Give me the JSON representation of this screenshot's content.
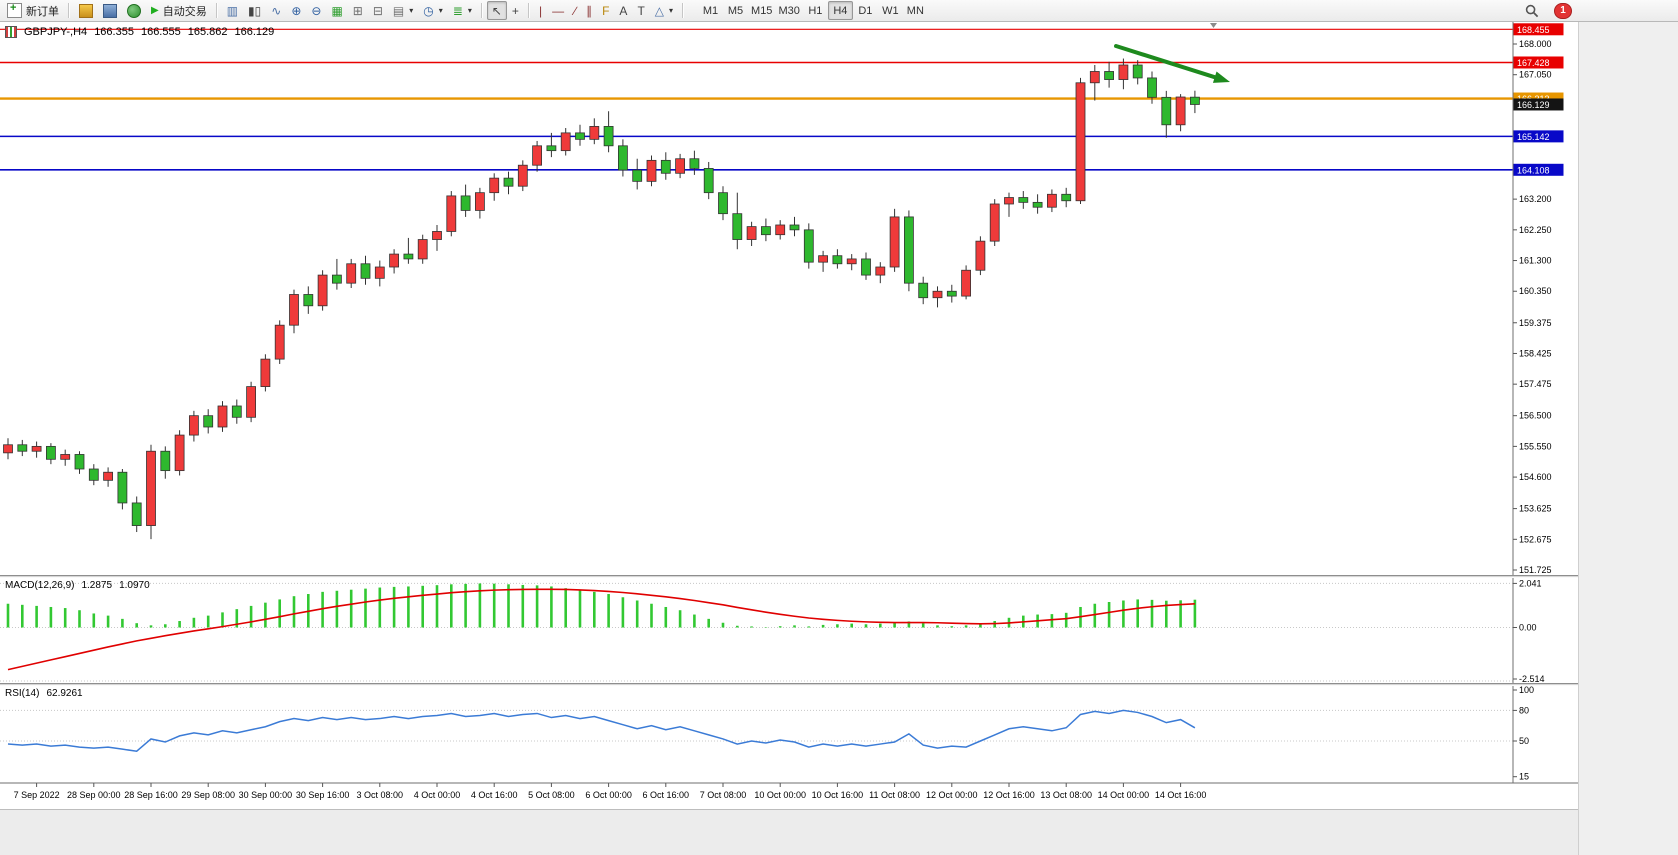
{
  "toolbar": {
    "new_order": "新订单",
    "autotrading": "自动交易",
    "timeframes": [
      "M1",
      "M5",
      "M15",
      "M30",
      "H1",
      "H4",
      "D1",
      "W1",
      "MN"
    ],
    "active_timeframe": "H4",
    "badge_count": "1"
  },
  "icons": {
    "autotrading_play": "▶",
    "bar_chart": "▥",
    "candlestick": "▮▯",
    "line_chart": "∿",
    "zoom_in": "⊕",
    "zoom_out": "⊖",
    "tile_windows": "▦",
    "window_a": "⊞",
    "window_b": "⊟",
    "new_chart": "▤",
    "period_clock": "◷",
    "indicators": "≣",
    "cursor": "↖",
    "crosshair": "+",
    "vertical_line": "|",
    "horizontal_line": "—",
    "trend_line": "∕",
    "channel": "∥",
    "fibonacci": "F",
    "text_tool": "A",
    "label_tool": "T",
    "shapes": "△",
    "dropdown": "▾"
  },
  "chart": {
    "symbol_period": "GBPJPY-,H4",
    "open": "166.355",
    "high": "166.555",
    "low": "165.862",
    "close": "166.129"
  },
  "macd": {
    "label": "MACD(12,26,9)",
    "main_value": "1.2875",
    "signal_value": "1.0970"
  },
  "rsi": {
    "label": "RSI(14)",
    "value": "62.9261"
  },
  "chart_data": {
    "type": "candlestick",
    "symbol": "GBPJPY-",
    "timeframe": "H4",
    "up_color": "#ef3a3a",
    "down_color": "#2eb82e",
    "price_axis_ticks": [
      "168.000",
      "167.050",
      "163.200",
      "162.250",
      "161.300",
      "160.350",
      "159.375",
      "158.425",
      "157.475",
      "156.500",
      "155.550",
      "154.600",
      "153.625",
      "152.675",
      "151.725"
    ],
    "levels": [
      {
        "price": 168.455,
        "color": "#e80000",
        "width": 1.2
      },
      {
        "price": 167.428,
        "color": "#e80000",
        "width": 1.5
      },
      {
        "price": 166.313,
        "color": "#e89600",
        "width": 2.4
      },
      {
        "price": 165.142,
        "color": "#0808c8",
        "width": 1.6
      },
      {
        "price": 164.108,
        "color": "#0808c8",
        "width": 1.6
      }
    ],
    "current_price": 166.129,
    "x_labels": [
      "7 Sep 2022",
      "28 Sep 00:00",
      "28 Sep 16:00",
      "29 Sep 08:00",
      "30 Sep 00:00",
      "30 Sep 16:00",
      "3 Oct 08:00",
      "4 Oct 00:00",
      "4 Oct 16:00",
      "5 Oct 08:00",
      "6 Oct 00:00",
      "6 Oct 16:00",
      "7 Oct 08:00",
      "10 Oct 00:00",
      "10 Oct 16:00",
      "11 Oct 08:00",
      "12 Oct 00:00",
      "12 Oct 16:00",
      "13 Oct 08:00",
      "14 Oct 00:00",
      "14 Oct 16:00"
    ],
    "first_label_candle": 2,
    "label_every": 4,
    "candles": [
      [
        155.35,
        155.8,
        155.15,
        155.6
      ],
      [
        155.6,
        155.75,
        155.25,
        155.4
      ],
      [
        155.4,
        155.7,
        155.2,
        155.55
      ],
      [
        155.55,
        155.65,
        155.0,
        155.15
      ],
      [
        155.15,
        155.45,
        154.95,
        155.3
      ],
      [
        155.3,
        155.4,
        154.7,
        154.85
      ],
      [
        154.85,
        155.0,
        154.35,
        154.5
      ],
      [
        154.5,
        154.9,
        154.3,
        154.75
      ],
      [
        154.75,
        154.85,
        153.6,
        153.8
      ],
      [
        153.8,
        154.0,
        152.9,
        153.1
      ],
      [
        153.1,
        155.6,
        152.68,
        155.4
      ],
      [
        155.4,
        155.55,
        154.55,
        154.8
      ],
      [
        154.8,
        156.05,
        154.65,
        155.9
      ],
      [
        155.9,
        156.65,
        155.7,
        156.5
      ],
      [
        156.5,
        156.7,
        155.95,
        156.15
      ],
      [
        156.15,
        156.95,
        156.0,
        156.8
      ],
      [
        156.8,
        157.0,
        156.25,
        156.45
      ],
      [
        156.45,
        157.55,
        156.3,
        157.4
      ],
      [
        157.4,
        158.4,
        157.25,
        158.25
      ],
      [
        158.25,
        159.45,
        158.1,
        159.3
      ],
      [
        159.3,
        160.4,
        159.05,
        160.25
      ],
      [
        160.25,
        160.5,
        159.65,
        159.9
      ],
      [
        159.9,
        161.0,
        159.75,
        160.85
      ],
      [
        160.85,
        161.35,
        160.4,
        160.6
      ],
      [
        160.6,
        161.35,
        160.45,
        161.2
      ],
      [
        161.2,
        161.45,
        160.55,
        160.75
      ],
      [
        160.75,
        161.3,
        160.5,
        161.1
      ],
      [
        161.1,
        161.65,
        160.9,
        161.5
      ],
      [
        161.5,
        162.0,
        161.2,
        161.35
      ],
      [
        161.35,
        162.1,
        161.2,
        161.95
      ],
      [
        161.95,
        162.4,
        161.6,
        162.2
      ],
      [
        162.2,
        163.45,
        162.05,
        163.3
      ],
      [
        163.3,
        163.65,
        162.65,
        162.85
      ],
      [
        162.85,
        163.55,
        162.6,
        163.4
      ],
      [
        163.4,
        164.0,
        163.15,
        163.85
      ],
      [
        163.85,
        164.05,
        163.35,
        163.6
      ],
      [
        163.6,
        164.4,
        163.45,
        164.25
      ],
      [
        164.25,
        165.0,
        164.05,
        164.85
      ],
      [
        164.85,
        165.25,
        164.5,
        164.7
      ],
      [
        164.7,
        165.4,
        164.55,
        165.25
      ],
      [
        165.25,
        165.5,
        164.85,
        165.05
      ],
      [
        165.05,
        165.7,
        164.9,
        165.45
      ],
      [
        165.45,
        165.92,
        164.65,
        164.85
      ],
      [
        164.85,
        165.05,
        163.9,
        164.1
      ],
      [
        164.1,
        164.45,
        163.5,
        163.75
      ],
      [
        163.75,
        164.55,
        163.6,
        164.4
      ],
      [
        164.4,
        164.65,
        163.8,
        164.0
      ],
      [
        164.0,
        164.6,
        163.85,
        164.45
      ],
      [
        164.45,
        164.7,
        163.95,
        164.15
      ],
      [
        164.15,
        164.35,
        163.2,
        163.4
      ],
      [
        163.4,
        163.6,
        162.55,
        162.75
      ],
      [
        162.75,
        163.4,
        161.65,
        161.95
      ],
      [
        161.95,
        162.5,
        161.75,
        162.35
      ],
      [
        162.35,
        162.6,
        161.9,
        162.1
      ],
      [
        162.1,
        162.55,
        161.95,
        162.4
      ],
      [
        162.4,
        162.65,
        162.05,
        162.25
      ],
      [
        162.25,
        162.45,
        161.05,
        161.25
      ],
      [
        161.25,
        161.6,
        160.95,
        161.45
      ],
      [
        161.45,
        161.65,
        161.05,
        161.2
      ],
      [
        161.2,
        161.5,
        161.0,
        161.35
      ],
      [
        161.35,
        161.55,
        160.7,
        160.85
      ],
      [
        160.85,
        161.25,
        160.6,
        161.1
      ],
      [
        161.1,
        162.9,
        160.95,
        162.65
      ],
      [
        162.65,
        162.85,
        160.35,
        160.6
      ],
      [
        160.6,
        160.8,
        159.95,
        160.15
      ],
      [
        160.15,
        160.5,
        159.85,
        160.35
      ],
      [
        160.35,
        160.55,
        160.0,
        160.2
      ],
      [
        160.2,
        161.15,
        160.1,
        161.0
      ],
      [
        161.0,
        162.05,
        160.85,
        161.9
      ],
      [
        161.9,
        163.2,
        161.75,
        163.05
      ],
      [
        163.05,
        163.4,
        162.65,
        163.25
      ],
      [
        163.25,
        163.45,
        162.9,
        163.1
      ],
      [
        163.1,
        163.35,
        162.75,
        162.95
      ],
      [
        162.95,
        163.5,
        162.8,
        163.35
      ],
      [
        163.35,
        163.55,
        162.95,
        163.15
      ],
      [
        163.15,
        166.95,
        163.05,
        166.8
      ],
      [
        166.8,
        167.35,
        166.25,
        167.15
      ],
      [
        167.15,
        167.45,
        166.65,
        166.9
      ],
      [
        166.9,
        167.55,
        166.6,
        167.35
      ],
      [
        167.35,
        167.5,
        166.75,
        166.95
      ],
      [
        166.95,
        167.15,
        166.15,
        166.35
      ],
      [
        166.35,
        166.55,
        165.1,
        165.5
      ],
      [
        165.5,
        166.45,
        165.3,
        166.36
      ],
      [
        166.355,
        166.555,
        165.862,
        166.129
      ]
    ],
    "macd": {
      "ticks": [
        "2.041",
        "0.00",
        "-2.514"
      ],
      "histogram_color": "#32c832",
      "signal_color": "#e00000",
      "histogram": [
        1.1,
        1.05,
        1.0,
        0.95,
        0.9,
        0.8,
        0.65,
        0.55,
        0.4,
        0.2,
        0.1,
        0.15,
        0.3,
        0.45,
        0.55,
        0.7,
        0.85,
        1.0,
        1.15,
        1.3,
        1.45,
        1.55,
        1.65,
        1.7,
        1.75,
        1.8,
        1.85,
        1.88,
        1.9,
        1.93,
        1.96,
        2.0,
        2.02,
        2.04,
        2.03,
        2.0,
        1.97,
        1.95,
        1.9,
        1.82,
        1.72,
        1.65,
        1.55,
        1.4,
        1.25,
        1.1,
        0.95,
        0.8,
        0.6,
        0.4,
        0.22,
        0.08,
        0.05,
        0.02,
        0.06,
        0.1,
        0.05,
        0.12,
        0.15,
        0.18,
        0.15,
        0.18,
        0.22,
        0.28,
        0.2,
        0.1,
        0.06,
        0.1,
        0.18,
        0.3,
        0.45,
        0.55,
        0.6,
        0.62,
        0.68,
        0.95,
        1.1,
        1.18,
        1.25,
        1.3,
        1.28,
        1.24,
        1.26,
        1.2875
      ],
      "signal": [
        -1.95,
        -1.8,
        -1.65,
        -1.5,
        -1.35,
        -1.2,
        -1.05,
        -0.9,
        -0.76,
        -0.62,
        -0.5,
        -0.38,
        -0.27,
        -0.16,
        -0.06,
        0.04,
        0.15,
        0.26,
        0.38,
        0.5,
        0.63,
        0.75,
        0.87,
        0.98,
        1.08,
        1.18,
        1.27,
        1.35,
        1.42,
        1.49,
        1.55,
        1.61,
        1.66,
        1.7,
        1.73,
        1.75,
        1.76,
        1.77,
        1.77,
        1.76,
        1.74,
        1.71,
        1.67,
        1.62,
        1.56,
        1.49,
        1.42,
        1.34,
        1.25,
        1.15,
        1.05,
        0.93,
        0.82,
        0.71,
        0.61,
        0.52,
        0.44,
        0.38,
        0.33,
        0.29,
        0.26,
        0.24,
        0.23,
        0.23,
        0.23,
        0.22,
        0.2,
        0.18,
        0.17,
        0.18,
        0.21,
        0.26,
        0.31,
        0.36,
        0.41,
        0.5,
        0.6,
        0.7,
        0.8,
        0.89,
        0.96,
        1.02,
        1.06,
        1.097
      ]
    },
    "rsi": {
      "ticks": [
        "100",
        "80",
        "50",
        "15"
      ],
      "level_lines": [
        80,
        50
      ],
      "line_color": "#3b7bd6",
      "values": [
        47,
        46,
        47,
        45,
        46,
        44,
        43,
        44,
        42,
        40,
        52,
        49,
        55,
        58,
        56,
        60,
        58,
        61,
        64,
        69,
        72,
        70,
        73,
        71,
        73,
        71,
        72,
        74,
        72,
        74,
        75,
        77,
        74,
        75,
        77,
        74,
        76,
        77,
        73,
        75,
        72,
        74,
        70,
        66,
        62,
        65,
        61,
        64,
        60,
        56,
        52,
        47,
        50,
        48,
        51,
        49,
        44,
        47,
        45,
        47,
        45,
        47,
        49,
        57,
        46,
        43,
        45,
        44,
        50,
        56,
        62,
        64,
        62,
        60,
        63,
        76,
        79,
        77,
        80,
        78,
        74,
        68,
        71,
        62.93
      ]
    },
    "arrow": {
      "color": "#1e8a1e"
    }
  }
}
